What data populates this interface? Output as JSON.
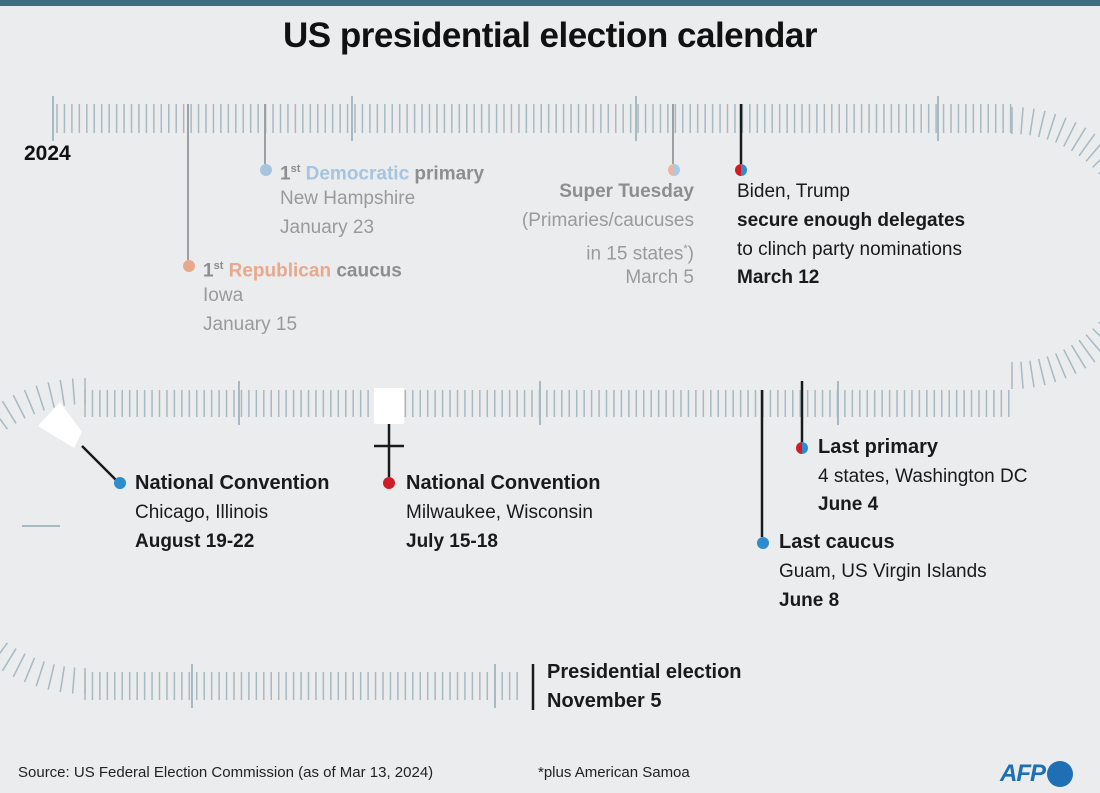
{
  "title": "US presidential election calendar",
  "year": "2024",
  "colors": {
    "republican": "#d01c24",
    "democratic": "#2d8ccd",
    "faded_republican": "#e8a88d",
    "faded_democratic": "#a5c4df",
    "track": "#a7b9c1",
    "accent_bar": "#3d6f80"
  },
  "events": {
    "dem_primary": {
      "ordinal": "1",
      "suffix": "st",
      "party": "Democratic",
      "kind": "primary",
      "place": "New Hampshire",
      "date": "January 23"
    },
    "rep_caucus": {
      "ordinal": "1",
      "suffix": "st",
      "party": "Republican",
      "kind": "caucus",
      "place": "Iowa",
      "date": "January 15"
    },
    "super_tuesday": {
      "title": "Super Tuesday",
      "detail1": "(Primaries/caucuses",
      "detail2_pre": "in 15 states",
      "detail2_mark": "*",
      "detail2_post": ")",
      "date": "March 5"
    },
    "delegates": {
      "line1": "Biden, Trump",
      "line2": "secure enough delegates",
      "line3": "to clinch party nominations",
      "date": "March 12"
    },
    "last_primary": {
      "title": "Last primary",
      "place": "4 states, Washington DC",
      "date": "June 4"
    },
    "last_caucus": {
      "title": "Last caucus",
      "place": "Guam, US Virgin Islands",
      "date": "June 8"
    },
    "rep_convention": {
      "title": "National Convention",
      "place": "Milwaukee, Wisconsin",
      "date": "July 15-18"
    },
    "dem_convention": {
      "title": "National Convention",
      "place": "Chicago, Illinois",
      "date": "August 19-22"
    },
    "election": {
      "title": "Presidential election",
      "date": "November 5"
    }
  },
  "footer": {
    "source": "Source: US Federal Election Commission (as of Mar 13, 2024)",
    "footnote": "*plus American Samoa",
    "logo": "AFP"
  }
}
